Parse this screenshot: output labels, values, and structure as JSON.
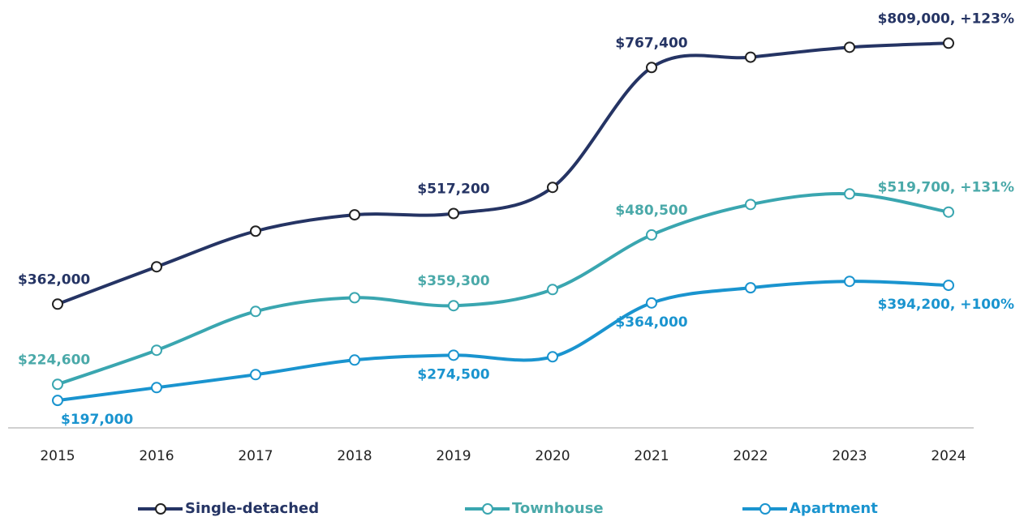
{
  "chart_data": {
    "type": "line",
    "categories": [
      "2015",
      "2016",
      "2017",
      "2018",
      "2019",
      "2020",
      "2021",
      "2022",
      "2023",
      "2024"
    ],
    "series": [
      {
        "name": "Single-detached",
        "color": "#253464",
        "values": [
          362000,
          426000,
          487000,
          515000,
          517200,
          562000,
          767400,
          785000,
          802000,
          809000
        ],
        "value_labels": [
          "$362,000",
          null,
          null,
          null,
          "$517,200",
          null,
          "$767,400",
          null,
          null,
          "$809,000, +123%"
        ]
      },
      {
        "name": "Townhouse",
        "color": "#3aa6b0",
        "values": [
          224600,
          283000,
          349500,
          373000,
          359300,
          387000,
          480500,
          532700,
          550800,
          519700
        ],
        "value_labels": [
          "$224,600",
          null,
          null,
          null,
          "$359,300",
          null,
          "$480,500",
          null,
          null,
          "$519,700, +131%"
        ]
      },
      {
        "name": "Apartment",
        "color": "#1a94cf",
        "values": [
          197000,
          219000,
          241200,
          266200,
          274500,
          271800,
          364000,
          390000,
          401000,
          394200
        ],
        "value_labels": [
          "$197,000",
          null,
          null,
          null,
          "$274,500",
          null,
          "$364,000",
          null,
          null,
          "$394,200, +100%"
        ]
      }
    ],
    "ylim": [
      150000,
      883000
    ],
    "legend": "bottom",
    "grid": false
  }
}
